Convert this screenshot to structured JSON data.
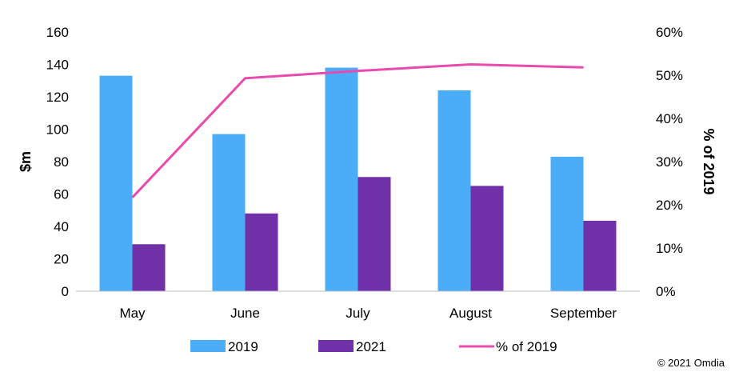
{
  "chart_data": {
    "type": "bar",
    "categories": [
      "May",
      "June",
      "July",
      "August",
      "September"
    ],
    "series": [
      {
        "name": "2019",
        "type": "bar",
        "axis": "left",
        "color": "#4BADF8",
        "values": [
          133,
          97,
          138,
          124,
          83
        ]
      },
      {
        "name": "2021",
        "type": "bar",
        "axis": "left",
        "color": "#7030A8",
        "values": [
          29,
          48,
          70.5,
          65,
          43.5
        ]
      },
      {
        "name": "% of 2019",
        "type": "line",
        "axis": "right",
        "color": "#E84AAE",
        "values": [
          21.7,
          49.3,
          51,
          52.5,
          51.8
        ]
      }
    ],
    "ylabel": "$m",
    "ylim": [
      0,
      160
    ],
    "yticks": [
      "0",
      "20",
      "40",
      "60",
      "80",
      "100",
      "120",
      "140",
      "160"
    ],
    "y2label": "% of 2019",
    "y2lim": [
      0,
      60
    ],
    "y2ticks": [
      "0%",
      "10%",
      "20%",
      "30%",
      "40%",
      "50%",
      "60%"
    ],
    "legend": "bottom",
    "grid": false,
    "copyright": "© 2021 Omdia"
  }
}
